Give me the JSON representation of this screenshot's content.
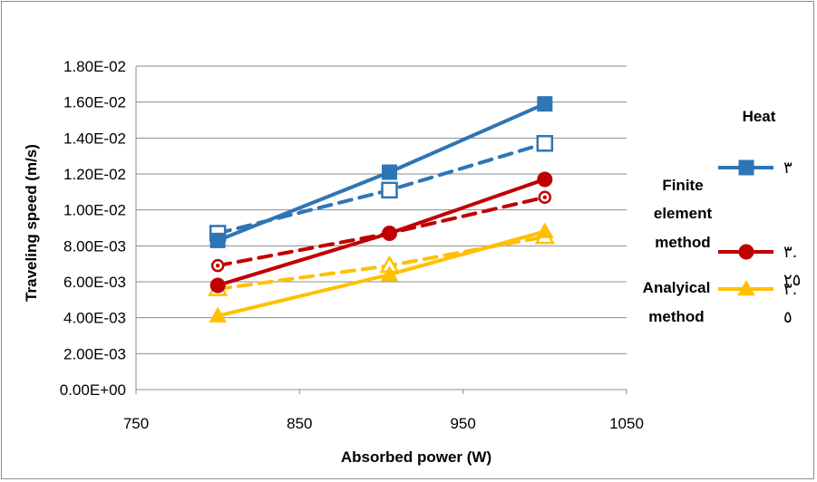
{
  "chart_data": {
    "type": "scatter",
    "xlabel": "Absorbed power (W)",
    "ylabel": "Traveling speed (m/s)",
    "xlim": [
      750,
      1050
    ],
    "ylim": [
      0,
      0.018
    ],
    "x_ticks": [
      750,
      850,
      950,
      1050
    ],
    "x_tick_labels": [
      "750",
      "850",
      "950",
      "1050"
    ],
    "y_ticks": [
      0,
      0.002,
      0.004,
      0.006,
      0.008,
      0.01,
      0.012,
      0.014,
      0.016,
      0.018
    ],
    "y_tick_labels": [
      "0.00E+00",
      "2.00E-03",
      "4.00E-03",
      "6.00E-03",
      "8.00E-03",
      "1.00E-02",
      "1.20E-02",
      "1.40E-02",
      "1.60E-02",
      "1.80E-02"
    ],
    "grid": "horizontal",
    "legend_placement": "right",
    "legend_labels": [
      "Heat",
      "Finite element method",
      "Analyical method"
    ],
    "series": [
      {
        "name": "٣",
        "style": "solid",
        "marker": "square",
        "color": "#2e75b6",
        "x": [
          800,
          905,
          1000
        ],
        "y": [
          0.0083,
          0.0121,
          0.0159
        ]
      },
      {
        "name": "٣",
        "style": "dashed",
        "marker": "square-open",
        "color": "#2e75b6",
        "x": [
          800,
          905,
          1000
        ],
        "y": [
          0.0087,
          0.0111,
          0.0137
        ]
      },
      {
        "name": "٣.٢٥",
        "style": "solid",
        "marker": "circle",
        "color": "#c00000",
        "x": [
          800,
          905,
          1000
        ],
        "y": [
          0.0058,
          0.0087,
          0.0117
        ]
      },
      {
        "name": "٣.٢٥",
        "style": "dashed",
        "marker": "circle-open",
        "color": "#c00000",
        "x": [
          800,
          905,
          1000
        ],
        "y": [
          0.0069,
          0.0087,
          0.0107
        ]
      },
      {
        "name": "٣.٥",
        "style": "solid",
        "marker": "triangle",
        "color": "#ffc000",
        "x": [
          800,
          905,
          1000
        ],
        "y": [
          0.0041,
          0.0064,
          0.0088
        ]
      },
      {
        "name": "٣.٥",
        "style": "dashed",
        "marker": "triangle-open",
        "color": "#ffc000",
        "x": [
          800,
          905,
          1000
        ],
        "y": [
          0.0056,
          0.0069,
          0.0085
        ]
      }
    ],
    "legend_entries": [
      {
        "label_lines": [
          "٣"
        ],
        "color": "#2e75b6",
        "marker": "square"
      },
      {
        "label_lines": [
          "٣.",
          "٢٥"
        ],
        "color": "#c00000",
        "marker": "circle"
      },
      {
        "label_lines": [
          "٣.",
          "٥"
        ],
        "color": "#ffc000",
        "marker": "triangle"
      }
    ]
  }
}
